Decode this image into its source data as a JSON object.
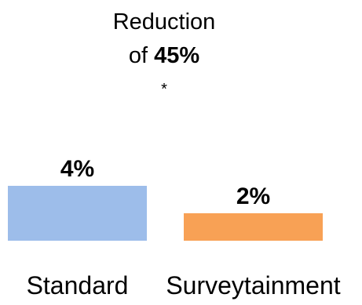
{
  "chart_data": {
    "type": "bar",
    "categories": [
      "Standard",
      "Surveytainment"
    ],
    "values": [
      4,
      2
    ],
    "value_labels": [
      "4%",
      "2%"
    ],
    "colors": [
      "#9dbdea",
      "#f8a155"
    ],
    "unit": "%",
    "annotation": {
      "line1": "Reduction",
      "line2_prefix": "of ",
      "line2_value": "45%",
      "significance": "*"
    },
    "grid": false,
    "legend": "none"
  }
}
